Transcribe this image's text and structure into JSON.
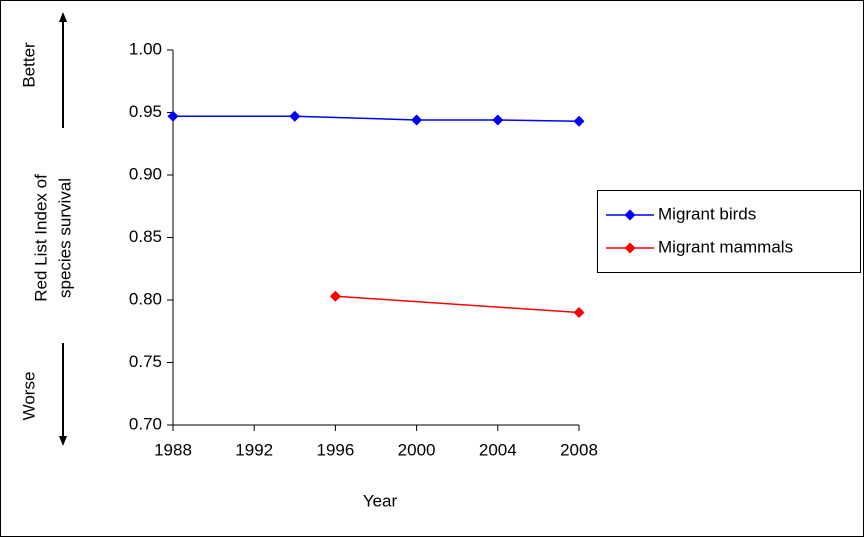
{
  "chart_data": {
    "type": "line",
    "y_label": [
      "Red List Index of",
      "species survival"
    ],
    "x_label": "Year",
    "annotations": [
      "Better",
      "Worse"
    ],
    "xlim": [
      1988,
      2008
    ],
    "xticks": [
      1988,
      1992,
      1996,
      2000,
      2004,
      2008
    ],
    "ylim": [
      0.7,
      1.0
    ],
    "yticks": [
      {
        "value": 0.7,
        "label": "0.70"
      },
      {
        "value": 0.75,
        "label": "0.75"
      },
      {
        "value": 0.8,
        "label": "0.80"
      },
      {
        "value": 0.85,
        "label": "0.85"
      },
      {
        "value": 0.9,
        "label": "0.90"
      },
      {
        "value": 0.95,
        "label": "0.95"
      },
      {
        "value": 1.0,
        "label": "1.00"
      }
    ],
    "grid": false,
    "legend": "right",
    "series": [
      {
        "name": "Migrant birds",
        "color": "#0000ff",
        "x": [
          1988,
          1994,
          2000,
          2004,
          2008
        ],
        "values": [
          0.947,
          0.947,
          0.944,
          0.944,
          0.943
        ]
      },
      {
        "name": "Migrant mammals",
        "color": "#ff0000",
        "x": [
          1996,
          2008
        ],
        "values": [
          0.803,
          0.79
        ]
      }
    ]
  }
}
